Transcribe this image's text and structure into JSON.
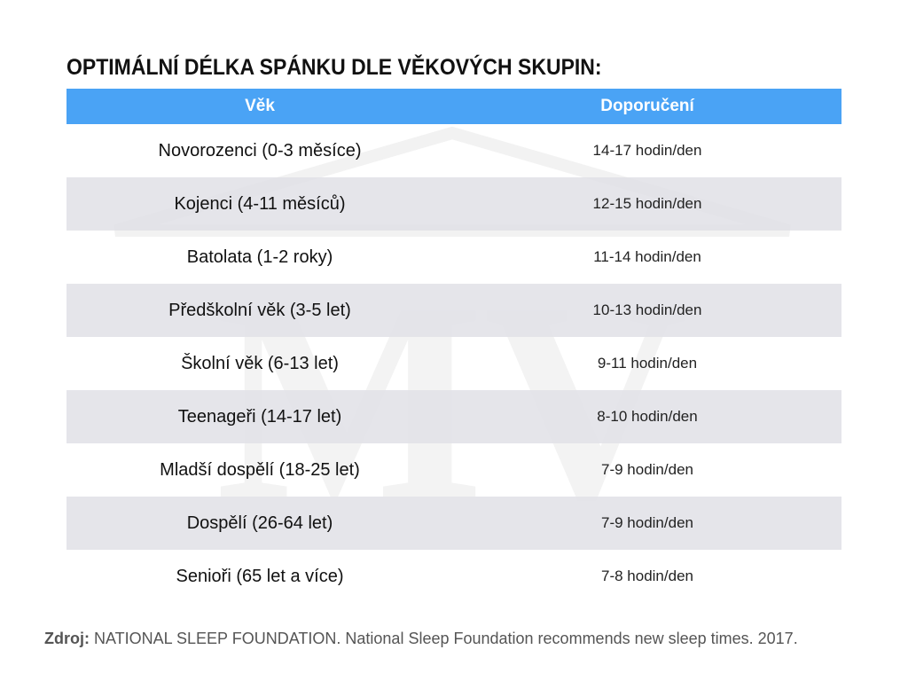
{
  "header": {
    "title": "OPTIMÁLNÍ DÉLKA SPÁNKU DLE VĚKOVÝCH SKUPIN:"
  },
  "table": {
    "columns": [
      "Věk",
      "Doporučení"
    ],
    "rows": [
      [
        "Novorozenci (0-3 měsíce)",
        "14-17 hodin/den"
      ],
      [
        "Kojenci (4-11 měsíců)",
        "12-15 hodin/den"
      ],
      [
        "Batolata (1-2 roky)",
        "11-14 hodin/den"
      ],
      [
        "Předškolní věk (3-5 let)",
        "10-13 hodin/den"
      ],
      [
        "Školní věk (6-13 let)",
        "9-11 hodin/den"
      ],
      [
        "Teenageři (14-17 let)",
        "8-10 hodin/den"
      ],
      [
        "Mladší dospělí (18-25 let)",
        "7-9 hodin/den"
      ],
      [
        "Dospělí (26-64 let)",
        "7-9 hodin/den"
      ],
      [
        "Senioři (65 let a více)",
        "7-8 hodin/den"
      ]
    ]
  },
  "footer": {
    "label": "Zdroj:",
    "text": "NATIONAL SLEEP FOUNDATION. National Sleep Foundation recommends new sleep times. 2017."
  }
}
